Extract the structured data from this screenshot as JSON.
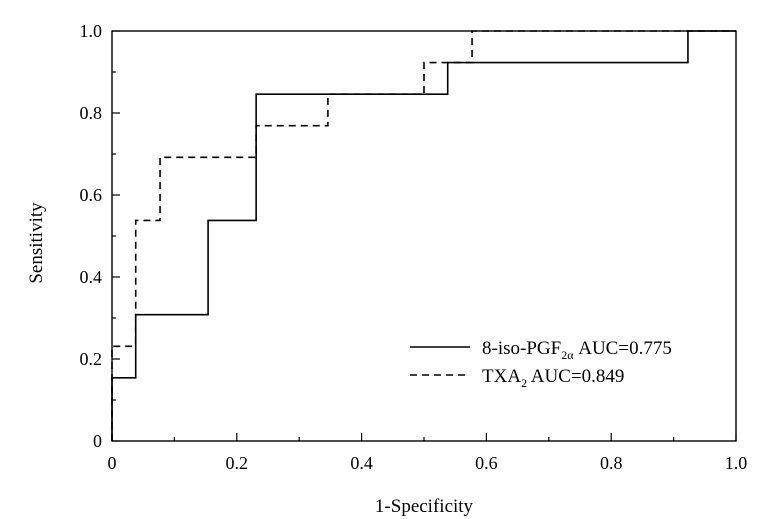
{
  "chart_data": {
    "type": "line",
    "xlabel": "1-Specificity",
    "ylabel": "Sensitivity",
    "xlim": [
      0,
      1
    ],
    "ylim": [
      0,
      1
    ],
    "x_ticks": [
      {
        "value": 0,
        "label": "0"
      },
      {
        "value": 0.2,
        "label": "0.2"
      },
      {
        "value": 0.4,
        "label": "0.4"
      },
      {
        "value": 0.6,
        "label": "0.6"
      },
      {
        "value": 0.8,
        "label": "0.8"
      },
      {
        "value": 1.0,
        "label": "1.0"
      }
    ],
    "y_ticks": [
      {
        "value": 0,
        "label": "0"
      },
      {
        "value": 0.2,
        "label": "0.2"
      },
      {
        "value": 0.4,
        "label": "0.4"
      },
      {
        "value": 0.6,
        "label": "0.6"
      },
      {
        "value": 0.8,
        "label": "0.8"
      },
      {
        "value": 1.0,
        "label": "1.0"
      }
    ],
    "minor_tick_step": 0.1,
    "grid": false,
    "legend_position": "bottom-right",
    "series": [
      {
        "name": "8-iso-PGF2α AUC=0.775",
        "legend_main": "8-iso-PGF",
        "legend_sub": "2α",
        "legend_rest": " AUC=0.775",
        "line_style": "solid",
        "color": "#000000",
        "points": [
          [
            0,
            0
          ],
          [
            0,
            0.154
          ],
          [
            0.038,
            0.154
          ],
          [
            0.038,
            0.308
          ],
          [
            0.154,
            0.308
          ],
          [
            0.154,
            0.538
          ],
          [
            0.231,
            0.538
          ],
          [
            0.231,
            0.846
          ],
          [
            0.538,
            0.846
          ],
          [
            0.538,
            0.923
          ],
          [
            0.923,
            0.923
          ],
          [
            0.923,
            1.0
          ],
          [
            1.0,
            1.0
          ]
        ]
      },
      {
        "name": "TXA2 AUC=0.849",
        "legend_main": "TXA",
        "legend_sub": "2",
        "legend_rest": " AUC=0.849",
        "line_style": "dashed",
        "color": "#000000",
        "points": [
          [
            0,
            0
          ],
          [
            0,
            0.231
          ],
          [
            0.038,
            0.231
          ],
          [
            0.038,
            0.538
          ],
          [
            0.077,
            0.538
          ],
          [
            0.077,
            0.692
          ],
          [
            0.231,
            0.692
          ],
          [
            0.231,
            0.769
          ],
          [
            0.346,
            0.769
          ],
          [
            0.346,
            0.846
          ],
          [
            0.5,
            0.846
          ],
          [
            0.5,
            0.923
          ],
          [
            0.577,
            0.923
          ],
          [
            0.577,
            1.0
          ],
          [
            1.0,
            1.0
          ]
        ]
      }
    ]
  }
}
